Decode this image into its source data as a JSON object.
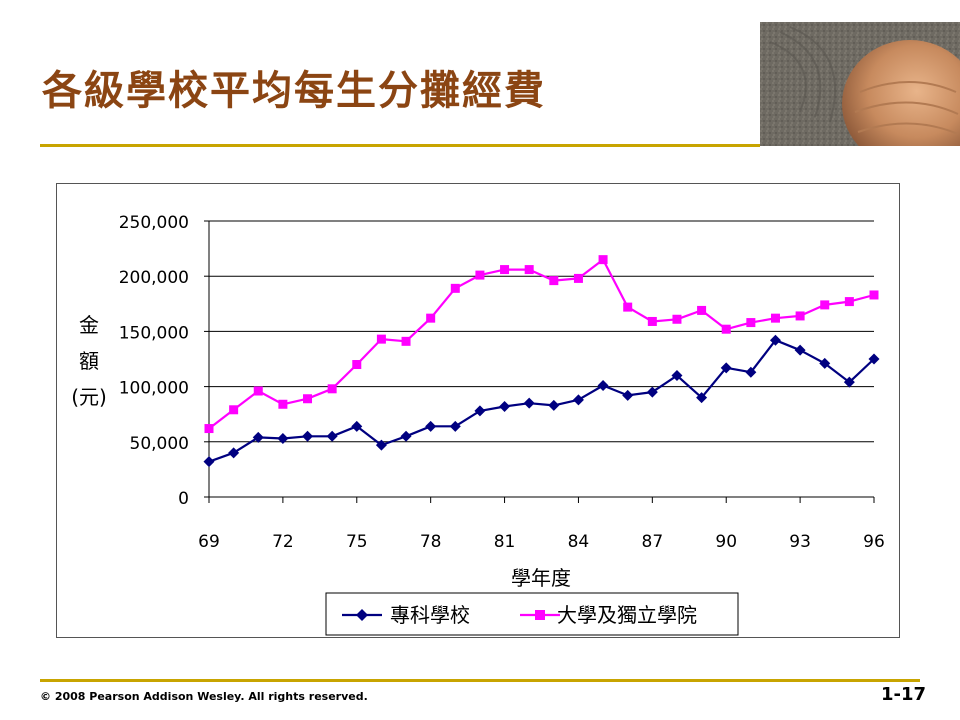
{
  "slide": {
    "title": "各級學校平均每生分攤經費",
    "copyright": "© 2008 Pearson Addison Wesley. All rights reserved.",
    "page_number": "1-17",
    "accent_color": "#c8a400",
    "title_color": "#8b4513"
  },
  "chart_data": {
    "type": "line",
    "xlabel": "學年度",
    "ylabel": [
      "金",
      "額",
      "(元)"
    ],
    "x": [
      69,
      70,
      71,
      72,
      73,
      74,
      75,
      76,
      77,
      78,
      79,
      80,
      81,
      82,
      83,
      84,
      85,
      86,
      87,
      88,
      89,
      90,
      91,
      92,
      93,
      94,
      95,
      96
    ],
    "x_ticks": [
      "69",
      "72",
      "75",
      "78",
      "81",
      "84",
      "87",
      "90",
      "93",
      "96"
    ],
    "y_ticks": [
      "0",
      "50,000",
      "100,000",
      "150,000",
      "200,000",
      "250,000"
    ],
    "ylim": [
      0,
      250000
    ],
    "grid": true,
    "legend_position": "bottom",
    "series": [
      {
        "name": "專科學校",
        "color": "#000080",
        "marker": "diamond",
        "values": [
          32000,
          40000,
          54000,
          53000,
          55000,
          55000,
          64000,
          47000,
          55000,
          64000,
          64000,
          78000,
          82000,
          85000,
          83000,
          88000,
          101000,
          92000,
          95000,
          110000,
          90000,
          117000,
          113000,
          142000,
          133000,
          121000,
          104000,
          125000
        ]
      },
      {
        "name": "大學及獨立學院",
        "color": "#ff00ff",
        "marker": "square",
        "values": [
          62000,
          79000,
          96000,
          84000,
          89000,
          98000,
          120000,
          143000,
          141000,
          162000,
          189000,
          201000,
          206000,
          206000,
          196000,
          198000,
          215000,
          172000,
          159000,
          161000,
          169000,
          152000,
          158000,
          162000,
          164000,
          174000,
          177000,
          183000
        ]
      }
    ]
  }
}
